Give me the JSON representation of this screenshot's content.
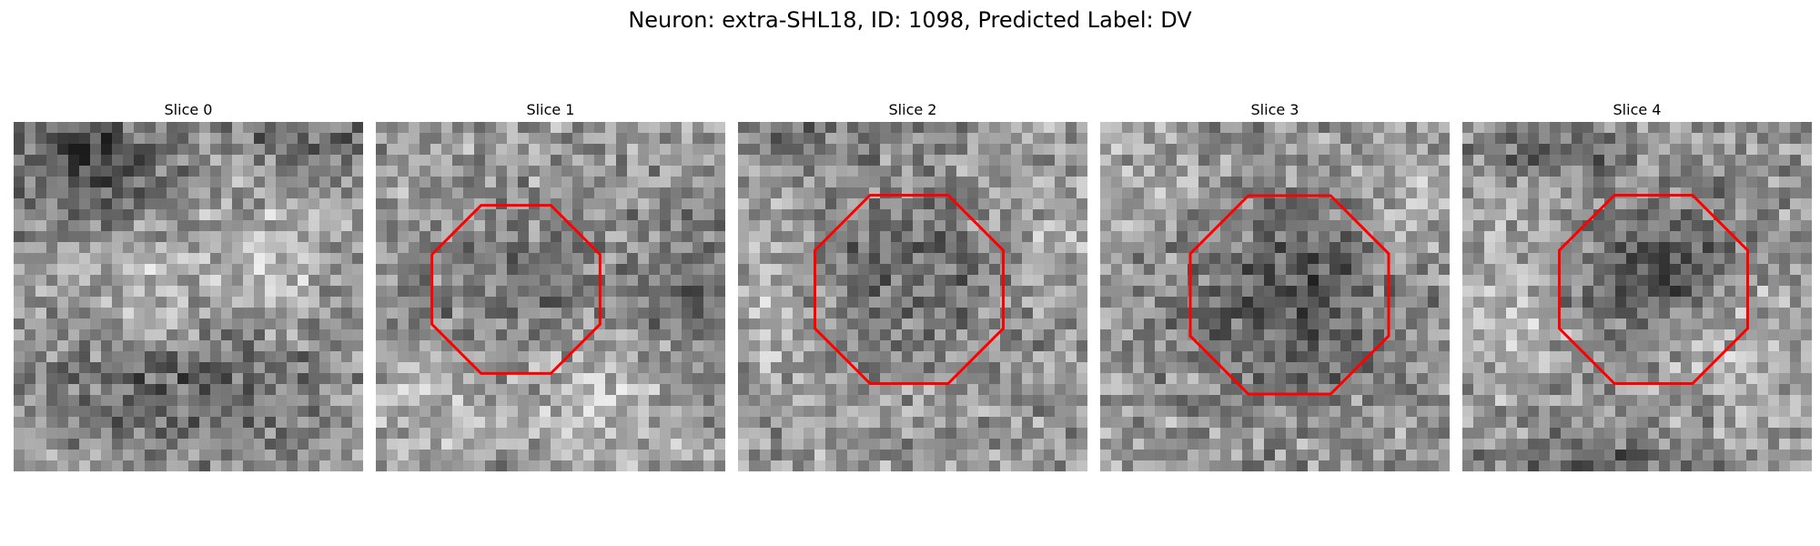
{
  "figure": {
    "title": "Neuron: extra-SHL18, ID: 1098, Predicted Label: DV",
    "roi_color": "#ff0000"
  },
  "panels": [
    {
      "title": "Slice 0",
      "has_roi": false
    },
    {
      "title": "Slice 1",
      "has_roi": true
    },
    {
      "title": "Slice 2",
      "has_roi": true
    },
    {
      "title": "Slice 3",
      "has_roi": true
    },
    {
      "title": "Slice 4",
      "has_roi": true
    }
  ]
}
